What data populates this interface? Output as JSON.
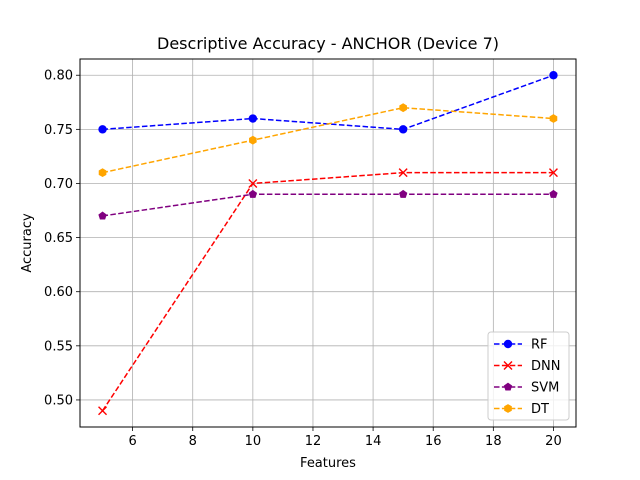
{
  "chart_data": {
    "type": "line",
    "title": "Descriptive Accuracy - ANCHOR (Device 7)",
    "xlabel": "Features",
    "ylabel": "Accuracy",
    "x": [
      5,
      10,
      15,
      20
    ],
    "xlim": [
      4.25,
      20.75
    ],
    "ylim": [
      0.475,
      0.815
    ],
    "xticks": [
      6,
      8,
      10,
      12,
      14,
      16,
      18,
      20
    ],
    "yticks": [
      0.5,
      0.55,
      0.6,
      0.65,
      0.7,
      0.75,
      0.8
    ],
    "xtick_labels": [
      "6",
      "8",
      "10",
      "12",
      "14",
      "16",
      "18",
      "20"
    ],
    "ytick_labels": [
      "0.50",
      "0.55",
      "0.60",
      "0.65",
      "0.70",
      "0.75",
      "0.80"
    ],
    "grid": true,
    "legend_position": "bottom-right",
    "series": [
      {
        "name": "RF",
        "values": [
          0.75,
          0.76,
          0.75,
          0.8
        ],
        "color": "#0000ff",
        "marker": "circle"
      },
      {
        "name": "DNN",
        "values": [
          0.49,
          0.7,
          0.71,
          0.71
        ],
        "color": "#ff0000",
        "marker": "x"
      },
      {
        "name": "SVM",
        "values": [
          0.67,
          0.69,
          0.69,
          0.69
        ],
        "color": "#800080",
        "marker": "pentagon"
      },
      {
        "name": "DT",
        "values": [
          0.71,
          0.74,
          0.77,
          0.76
        ],
        "color": "#ffa500",
        "marker": "hexagon"
      }
    ]
  }
}
